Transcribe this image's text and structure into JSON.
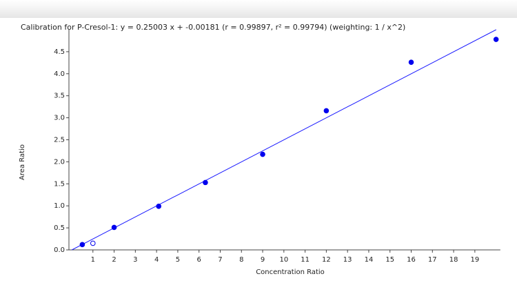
{
  "chart_data": {
    "type": "scatter",
    "title": "Calibration for P-Cresol-1: y = 0.25003 x + -0.00181 (r = 0.99897, r² = 0.99794)  (weighting: 1 / x^2)",
    "x_label": "Concentration Ratio",
    "y_label": "Area Ratio",
    "x": [
      0.5,
      1,
      2,
      4.1,
      6.3,
      9,
      12,
      16,
      20
    ],
    "values": [
      0.12,
      0.15,
      0.51,
      0.99,
      1.53,
      2.17,
      3.16,
      4.26,
      4.78
    ],
    "excluded": [
      false,
      true,
      false,
      false,
      false,
      false,
      false,
      false,
      false
    ],
    "color": "#0000ee",
    "fit": {
      "slope": 0.25003,
      "intercept": -0.00181,
      "color": "#1a1aff"
    },
    "xlim": [
      0,
      20.2
    ],
    "ylim": [
      0,
      5.0
    ],
    "xticks": [
      1,
      2,
      3,
      4,
      5,
      6,
      7,
      8,
      9,
      10,
      11,
      12,
      13,
      14,
      15,
      16,
      17,
      18,
      19
    ],
    "yticks": [
      {
        "value": 0,
        "label": "0.0"
      },
      0.5,
      {
        "value": 1,
        "label": "1.0"
      },
      1.5,
      {
        "value": 2,
        "label": "2.0"
      },
      2.5,
      {
        "value": 3,
        "label": "3.0"
      },
      3.5,
      {
        "value": 4,
        "label": "4.0"
      },
      4.5
    ]
  }
}
